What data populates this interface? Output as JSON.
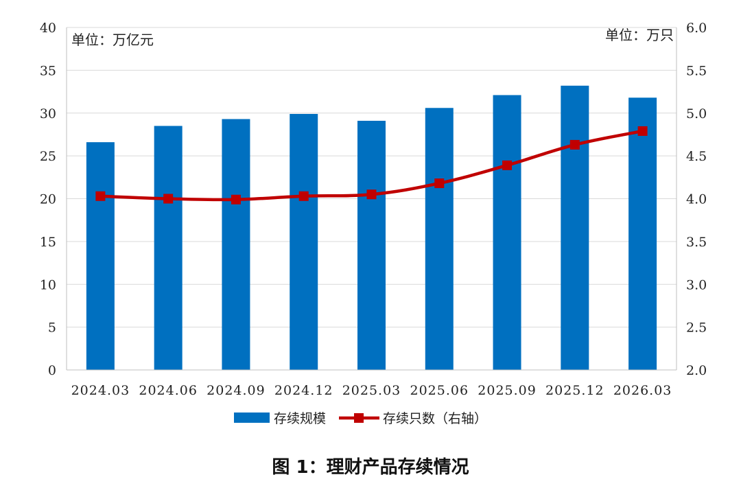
{
  "chart_data": {
    "type": "bar+line",
    "categories": [
      "2024.03",
      "2024.06",
      "2024.09",
      "2024.12",
      "2025.03",
      "2025.06",
      "2025.09",
      "2025.12",
      "2026.03"
    ],
    "series": [
      {
        "name": "存续规模",
        "type": "bar",
        "axis": "left",
        "values": [
          26.6,
          28.5,
          29.3,
          29.9,
          29.1,
          30.6,
          32.1,
          33.2,
          31.8
        ]
      },
      {
        "name": "存续只数（右轴）",
        "type": "line",
        "axis": "right",
        "values": [
          4.03,
          4.0,
          3.99,
          4.03,
          4.05,
          4.18,
          4.39,
          4.63,
          4.79
        ]
      }
    ],
    "left_axis": {
      "unit_label": "单位：万亿元",
      "ylim": [
        0,
        40
      ],
      "ticks": [
        "0",
        "5",
        "10",
        "15",
        "20",
        "25",
        "30",
        "35",
        "40"
      ]
    },
    "right_axis": {
      "unit_label": "单位：万只",
      "ylim": [
        2.0,
        6.0
      ],
      "ticks": [
        "2.0",
        "2.5",
        "3.0",
        "3.5",
        "4.0",
        "4.5",
        "5.0",
        "5.5",
        "6.0"
      ]
    },
    "grid": "horizontal",
    "legend_position": "bottom",
    "colors": {
      "bar": "#0070C0",
      "line": "#C00000",
      "grid": "#D9D9D9",
      "axis": "#BFBFBF"
    }
  },
  "caption": "图 1：理财产品存续情况"
}
